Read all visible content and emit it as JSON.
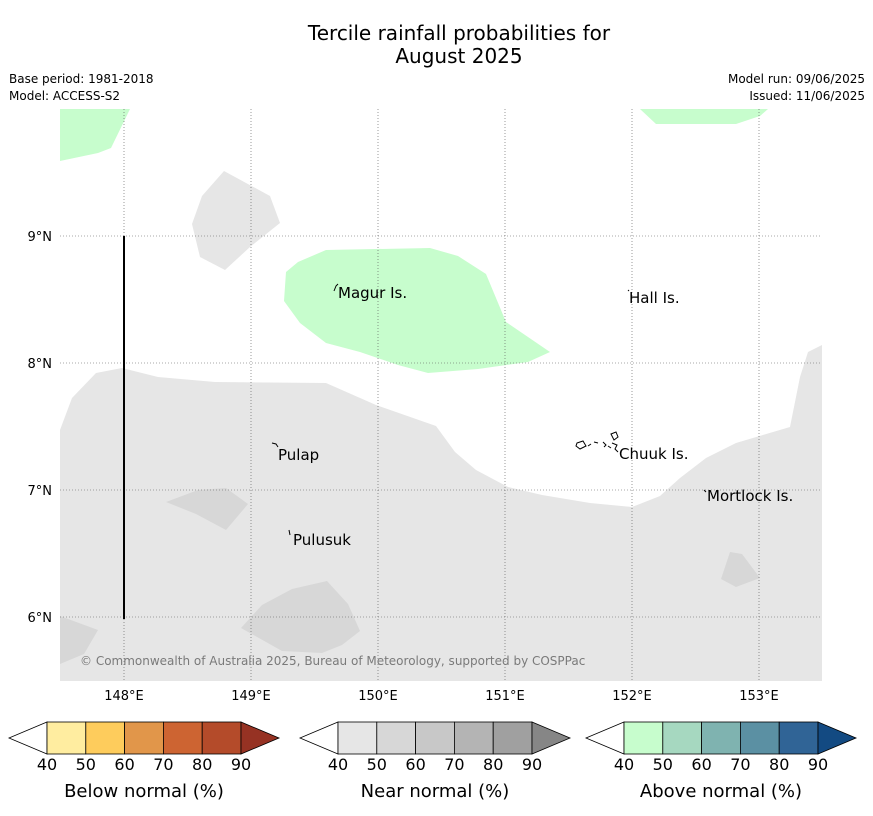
{
  "title_line1": "Tercile rainfall probabilities for",
  "title_line2": "August 2025",
  "meta_left": [
    "Base period: 1981-2018",
    "Model: ACCESS-S2"
  ],
  "meta_right": [
    "Model run: 09/06/2025",
    "Issued: 11/06/2025"
  ],
  "copyright": "© Commonwealth of Australia 2025, Bureau of Meteorology, supported by COSPPac",
  "lon_labels": [
    "148°E",
    "149°E",
    "150°E",
    "151°E",
    "152°E",
    "153°E"
  ],
  "lat_labels": [
    "9°N",
    "8°N",
    "7°N",
    "6°N"
  ],
  "places": [
    {
      "name": "Magur Is."
    },
    {
      "name": "Hall Is."
    },
    {
      "name": "Pulap"
    },
    {
      "name": "Chuuk Is."
    },
    {
      "name": "Mortlock Is."
    },
    {
      "name": "Pulusuk"
    }
  ],
  "colorbars": [
    {
      "label": "Below normal (%)",
      "colors": [
        "#ffeda0",
        "#fecc5c",
        "#e1964a",
        "#cd6432",
        "#b44b2a",
        "#963223"
      ],
      "ticks": [
        "40",
        "50",
        "60",
        "70",
        "80",
        "90"
      ]
    },
    {
      "label": "Near normal (%)",
      "colors": [
        "#e6e6e6",
        "#d7d7d7",
        "#c8c8c8",
        "#b4b4b4",
        "#a0a0a0",
        "#868686"
      ],
      "ticks": [
        "40",
        "50",
        "60",
        "70",
        "80",
        "90"
      ]
    },
    {
      "label": "Above normal (%)",
      "colors": [
        "#c7fdcd",
        "#a6d8c0",
        "#7fb3b0",
        "#5b90a3",
        "#306496",
        "#134a82"
      ],
      "ticks": [
        "40",
        "50",
        "60",
        "70",
        "80",
        "90"
      ]
    }
  ]
}
